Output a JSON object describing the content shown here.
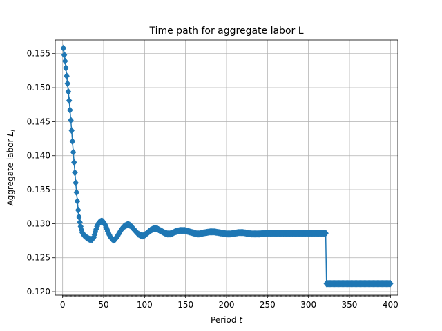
{
  "chart_data": {
    "type": "line",
    "title": "Time path for aggregate labor L",
    "xlabel": "Period t",
    "ylabel": "Aggregate labor L_t",
    "xlabel_parts": {
      "main": "Period ",
      "var": "t"
    },
    "ylabel_parts": {
      "main": "Aggregate labor ",
      "var": "L",
      "sub": "t"
    },
    "xlim": [
      -9,
      409
    ],
    "ylim": [
      0.1195,
      0.157
    ],
    "xticks": [
      0,
      50,
      100,
      150,
      200,
      250,
      300,
      350,
      400
    ],
    "yticks": [
      0.12,
      0.125,
      0.13,
      0.135,
      0.14,
      0.145,
      0.15,
      0.155
    ],
    "ytick_labels": [
      "0.120",
      "0.125",
      "0.130",
      "0.135",
      "0.140",
      "0.145",
      "0.150",
      "0.155"
    ],
    "xtick_labels": [
      "0",
      "50",
      "100",
      "150",
      "200",
      "250",
      "300",
      "350",
      "400"
    ],
    "grid": true,
    "marker": "diamond",
    "color": "#1f77b4",
    "series": [
      {
        "x_range": [
          1,
          400
        ],
        "keypoints": [
          [
            1,
            0.1558
          ],
          [
            2,
            0.1548
          ],
          [
            3,
            0.1539
          ],
          [
            4,
            0.1529
          ],
          [
            5,
            0.1517
          ],
          [
            6,
            0.1506
          ],
          [
            7,
            0.1494
          ],
          [
            8,
            0.1481
          ],
          [
            9,
            0.1467
          ],
          [
            10,
            0.1452
          ],
          [
            11,
            0.1437
          ],
          [
            12,
            0.1421
          ],
          [
            13,
            0.1405
          ],
          [
            14,
            0.139
          ],
          [
            15,
            0.1375
          ],
          [
            16,
            0.136
          ],
          [
            17,
            0.1346
          ],
          [
            18,
            0.1333
          ],
          [
            19,
            0.132
          ],
          [
            20,
            0.131
          ],
          [
            21,
            0.1302
          ],
          [
            22,
            0.1296
          ],
          [
            23,
            0.1291
          ],
          [
            24,
            0.1287
          ],
          [
            26,
            0.1283
          ],
          [
            28,
            0.1281
          ],
          [
            30,
            0.1279
          ],
          [
            33,
            0.1277
          ],
          [
            36,
            0.1277
          ],
          [
            38,
            0.128
          ],
          [
            40,
            0.1288
          ],
          [
            42,
            0.1296
          ],
          [
            44,
            0.1301
          ],
          [
            46,
            0.1303
          ],
          [
            48,
            0.1304
          ],
          [
            50,
            0.1302
          ],
          [
            52,
            0.1298
          ],
          [
            54,
            0.1292
          ],
          [
            56,
            0.1286
          ],
          [
            58,
            0.1281
          ],
          [
            60,
            0.1278
          ],
          [
            62,
            0.1276
          ],
          [
            64,
            0.1277
          ],
          [
            66,
            0.128
          ],
          [
            68,
            0.1284
          ],
          [
            70,
            0.1288
          ],
          [
            72,
            0.1292
          ],
          [
            75,
            0.1296
          ],
          [
            78,
            0.1298
          ],
          [
            80,
            0.1299
          ],
          [
            83,
            0.1297
          ],
          [
            86,
            0.1293
          ],
          [
            89,
            0.1289
          ],
          [
            92,
            0.1285
          ],
          [
            95,
            0.1283
          ],
          [
            98,
            0.1282
          ],
          [
            101,
            0.1284
          ],
          [
            104,
            0.1287
          ],
          [
            107,
            0.129
          ],
          [
            110,
            0.1292
          ],
          [
            113,
            0.1293
          ],
          [
            116,
            0.1292
          ],
          [
            119,
            0.129
          ],
          [
            122,
            0.1288
          ],
          [
            125,
            0.1286
          ],
          [
            128,
            0.1285
          ],
          [
            131,
            0.1285
          ],
          [
            134,
            0.1286
          ],
          [
            137,
            0.1288
          ],
          [
            140,
            0.1289
          ],
          [
            143,
            0.129
          ],
          [
            146,
            0.129
          ],
          [
            149,
            0.129
          ],
          [
            152,
            0.1289
          ],
          [
            155,
            0.1288
          ],
          [
            158,
            0.1287
          ],
          [
            161,
            0.1286
          ],
          [
            164,
            0.1285
          ],
          [
            167,
            0.1285
          ],
          [
            170,
            0.1286
          ],
          [
            175,
            0.1287
          ],
          [
            180,
            0.1288
          ],
          [
            185,
            0.1288
          ],
          [
            190,
            0.1287
          ],
          [
            195,
            0.1286
          ],
          [
            200,
            0.1285
          ],
          [
            205,
            0.1285
          ],
          [
            210,
            0.1286
          ],
          [
            215,
            0.1287
          ],
          [
            220,
            0.1287
          ],
          [
            225,
            0.1286
          ],
          [
            230,
            0.1285
          ],
          [
            240,
            0.1285
          ],
          [
            250,
            0.1286
          ],
          [
            260,
            0.1286
          ],
          [
            280,
            0.1286
          ],
          [
            300,
            0.1286
          ],
          [
            320,
            0.1286
          ],
          [
            321,
            0.1286
          ],
          [
            322,
            0.1212
          ],
          [
            350,
            0.1212
          ],
          [
            380,
            0.1212
          ],
          [
            400,
            0.1212
          ]
        ]
      }
    ]
  }
}
